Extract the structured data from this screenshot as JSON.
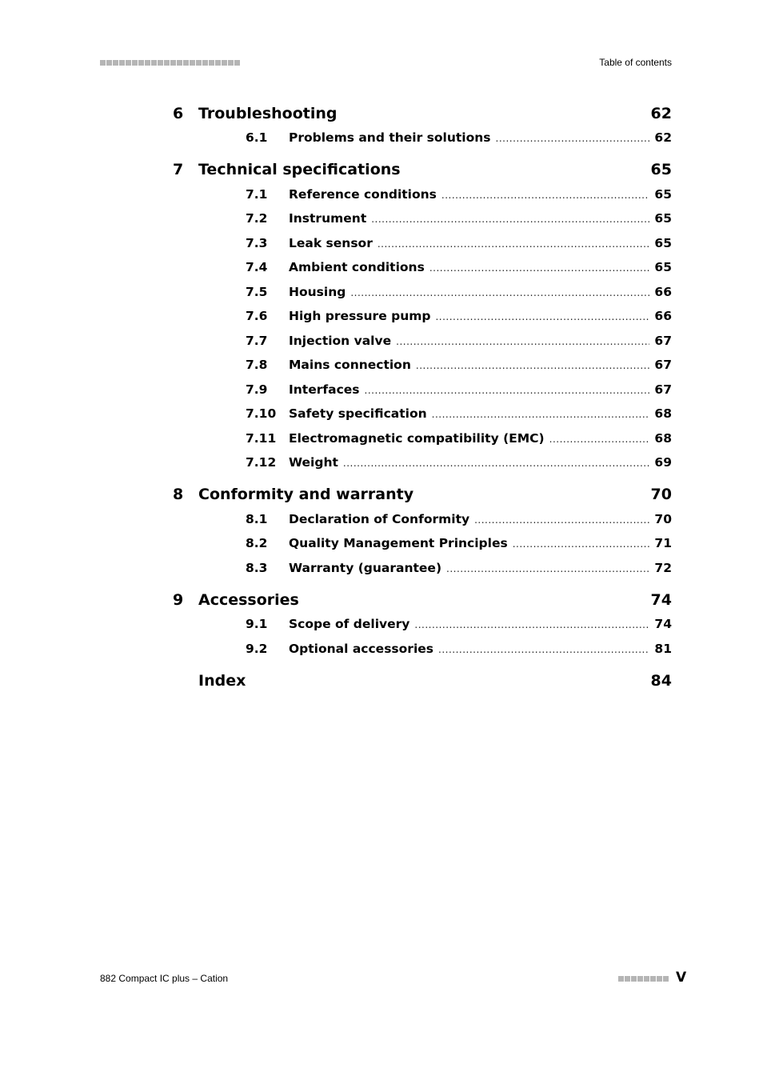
{
  "header": {
    "right_text": "Table of contents",
    "squares": 22
  },
  "footer": {
    "left_text": "882 Compact IC plus – Cation",
    "page": "V",
    "squares": 8
  },
  "toc": [
    {
      "level": "chapter",
      "number": "6",
      "title": "Troubleshooting",
      "page": "62"
    },
    {
      "level": "section",
      "number": "6.1",
      "title": "Problems and their solutions",
      "page": "62"
    },
    {
      "level": "chapter",
      "number": "7",
      "title": "Technical specifications",
      "page": "65"
    },
    {
      "level": "section",
      "number": "7.1",
      "title": "Reference conditions",
      "page": "65"
    },
    {
      "level": "section",
      "number": "7.2",
      "title": "Instrument",
      "page": "65"
    },
    {
      "level": "section",
      "number": "7.3",
      "title": "Leak sensor",
      "page": "65"
    },
    {
      "level": "section",
      "number": "7.4",
      "title": "Ambient conditions",
      "page": "65"
    },
    {
      "level": "section",
      "number": "7.5",
      "title": "Housing",
      "page": "66"
    },
    {
      "level": "section",
      "number": "7.6",
      "title": "High pressure pump",
      "page": "66"
    },
    {
      "level": "section",
      "number": "7.7",
      "title": "Injection valve",
      "page": "67"
    },
    {
      "level": "section",
      "number": "7.8",
      "title": "Mains connection",
      "page": "67"
    },
    {
      "level": "section",
      "number": "7.9",
      "title": "Interfaces",
      "page": "67"
    },
    {
      "level": "section",
      "number": "7.10",
      "title": "Safety specification",
      "page": "68"
    },
    {
      "level": "section",
      "number": "7.11",
      "title": "Electromagnetic compatibility (EMC)",
      "page": "68"
    },
    {
      "level": "section",
      "number": "7.12",
      "title": "Weight",
      "page": "69"
    },
    {
      "level": "chapter",
      "number": "8",
      "title": "Conformity and warranty",
      "page": "70"
    },
    {
      "level": "section",
      "number": "8.1",
      "title": "Declaration of Conformity",
      "page": "70"
    },
    {
      "level": "section",
      "number": "8.2",
      "title": "Quality Management Principles",
      "page": "71"
    },
    {
      "level": "section",
      "number": "8.3",
      "title": "Warranty (guarantee)",
      "page": "72"
    },
    {
      "level": "chapter",
      "number": "9",
      "title": "Accessories",
      "page": "74"
    },
    {
      "level": "section",
      "number": "9.1",
      "title": "Scope of delivery",
      "page": "74"
    },
    {
      "level": "section",
      "number": "9.2",
      "title": "Optional accessories",
      "page": "81"
    },
    {
      "level": "chapter",
      "number": "",
      "title": "Index",
      "page": "84"
    }
  ]
}
